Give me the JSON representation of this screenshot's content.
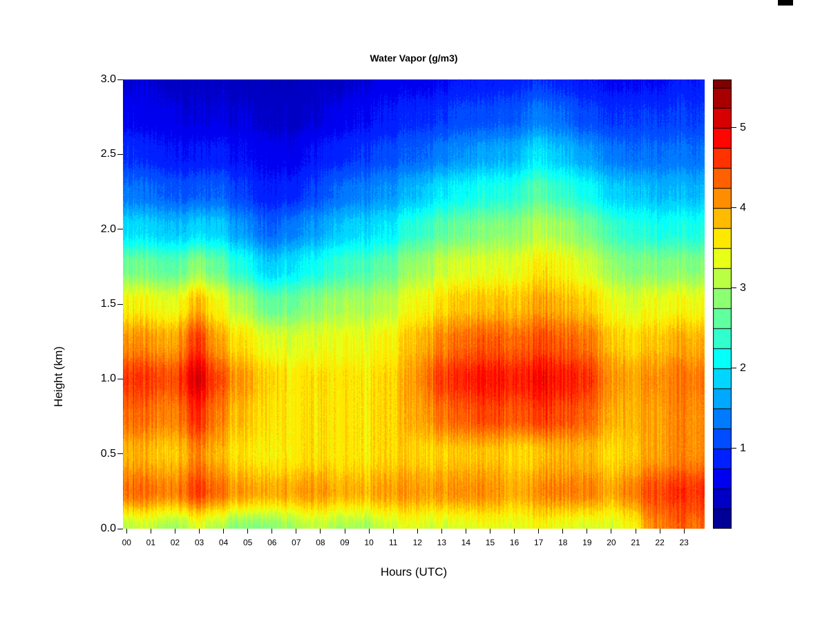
{
  "chart": {
    "title": "Water Vapor (g/m3)",
    "xlabel": "Hours (UTC)",
    "ylabel": "Height (km)",
    "x_ticks": [
      "00",
      "01",
      "02",
      "03",
      "04",
      "05",
      "06",
      "07",
      "08",
      "09",
      "10",
      "11",
      "12",
      "13",
      "14",
      "15",
      "16",
      "17",
      "18",
      "19",
      "20",
      "21",
      "22",
      "23"
    ],
    "y_ticks": [
      "0.0",
      "0.5",
      "1.0",
      "1.5",
      "2.0",
      "2.5",
      "3.0"
    ],
    "colorbar_ticks": [
      "1",
      "2",
      "3",
      "4",
      "5"
    ]
  },
  "chart_data": {
    "type": "heatmap",
    "title": "Water Vapor (g/m3)",
    "xlabel": "Hours (UTC)",
    "ylabel": "Height (km)",
    "colormap": "jet",
    "xlim": [
      0,
      24
    ],
    "ylim": [
      0,
      3
    ],
    "value_range": [
      0,
      5.6
    ],
    "level_step": 0.25,
    "colorbar_ticks": [
      1,
      2,
      3,
      4,
      5
    ],
    "x_hours": [
      0,
      1,
      2,
      3,
      4,
      5,
      6,
      7,
      8,
      9,
      10,
      11,
      12,
      13,
      14,
      15,
      16,
      17,
      18,
      19,
      20,
      21,
      22,
      23
    ],
    "y_heights_km": [
      0,
      0.25,
      0.5,
      0.75,
      1.0,
      1.25,
      1.5,
      1.75,
      2.0,
      2.25,
      2.5,
      2.75,
      3.0
    ],
    "values_g_m3": [
      [
        3.2,
        3.2,
        3.0,
        3.3,
        3.0,
        2.8,
        2.8,
        3.0,
        3.2,
        3.0,
        3.0,
        3.2,
        3.3,
        3.3,
        3.3,
        3.4,
        3.4,
        3.5,
        3.4,
        3.3,
        3.3,
        3.5,
        4.2,
        4.3
      ],
      [
        4.4,
        4.3,
        4.2,
        4.6,
        4.2,
        4.0,
        3.9,
        4.0,
        4.1,
        3.9,
        3.9,
        4.0,
        4.0,
        4.1,
        4.1,
        4.1,
        4.0,
        4.1,
        4.2,
        4.2,
        4.0,
        4.2,
        4.5,
        4.6
      ],
      [
        4.0,
        3.9,
        3.8,
        4.2,
        3.8,
        3.6,
        3.5,
        3.6,
        3.7,
        3.6,
        3.6,
        3.7,
        3.7,
        3.8,
        3.8,
        3.8,
        3.8,
        3.8,
        3.9,
        3.9,
        3.7,
        3.8,
        4.0,
        4.1
      ],
      [
        4.4,
        4.3,
        4.2,
        4.7,
        4.1,
        3.8,
        3.6,
        3.6,
        3.7,
        3.6,
        3.6,
        3.7,
        3.9,
        4.3,
        4.4,
        4.5,
        4.5,
        4.6,
        4.5,
        4.4,
        4.0,
        3.9,
        4.0,
        4.1
      ],
      [
        4.7,
        4.6,
        4.5,
        5.1,
        4.4,
        4.0,
        3.7,
        3.6,
        3.7,
        3.6,
        3.6,
        3.7,
        4.0,
        4.6,
        4.7,
        4.8,
        4.8,
        4.9,
        4.8,
        4.7,
        4.2,
        4.0,
        4.1,
        4.2
      ],
      [
        4.2,
        4.1,
        4.0,
        4.6,
        3.9,
        3.6,
        3.3,
        3.3,
        3.4,
        3.4,
        3.4,
        3.5,
        3.8,
        4.2,
        4.3,
        4.4,
        4.4,
        4.5,
        4.4,
        4.3,
        3.9,
        3.7,
        3.8,
        3.9
      ],
      [
        3.6,
        3.5,
        3.4,
        3.9,
        3.4,
        3.0,
        2.6,
        2.7,
        2.9,
        3.0,
        3.0,
        3.1,
        3.4,
        3.7,
        3.8,
        3.8,
        3.9,
        4.0,
        3.9,
        3.8,
        3.5,
        3.3,
        3.4,
        3.4
      ],
      [
        2.8,
        2.7,
        2.6,
        2.9,
        2.6,
        2.2,
        1.8,
        2.0,
        2.2,
        2.4,
        2.5,
        2.6,
        2.9,
        3.2,
        3.3,
        3.3,
        3.4,
        3.6,
        3.5,
        3.3,
        3.0,
        2.8,
        2.8,
        2.8
      ],
      [
        2.0,
        1.9,
        1.8,
        1.9,
        1.8,
        1.5,
        1.2,
        1.4,
        1.6,
        1.8,
        1.9,
        2.0,
        2.3,
        2.6,
        2.7,
        2.8,
        2.9,
        3.1,
        3.0,
        2.8,
        2.5,
        2.3,
        2.2,
        2.2
      ],
      [
        1.4,
        1.3,
        1.2,
        1.2,
        1.2,
        1.0,
        0.8,
        0.9,
        1.1,
        1.3,
        1.4,
        1.5,
        1.7,
        2.0,
        2.1,
        2.2,
        2.3,
        2.6,
        2.4,
        2.2,
        1.9,
        1.8,
        1.7,
        1.7
      ],
      [
        1.0,
        0.9,
        0.8,
        0.8,
        0.8,
        0.7,
        0.6,
        0.6,
        0.8,
        0.9,
        1.0,
        1.1,
        1.2,
        1.4,
        1.5,
        1.6,
        1.7,
        2.0,
        1.8,
        1.6,
        1.4,
        1.3,
        1.3,
        1.3
      ],
      [
        0.7,
        0.6,
        0.6,
        0.5,
        0.5,
        0.5,
        0.4,
        0.4,
        0.5,
        0.6,
        0.7,
        0.8,
        0.9,
        1.0,
        1.1,
        1.1,
        1.2,
        1.4,
        1.3,
        1.1,
        1.0,
        1.0,
        1.0,
        1.0
      ],
      [
        0.5,
        0.5,
        0.4,
        0.4,
        0.4,
        0.3,
        0.3,
        0.3,
        0.4,
        0.4,
        0.5,
        0.6,
        0.6,
        0.7,
        0.8,
        0.8,
        0.9,
        1.0,
        0.9,
        0.8,
        0.7,
        0.7,
        0.7,
        0.8
      ]
    ]
  }
}
